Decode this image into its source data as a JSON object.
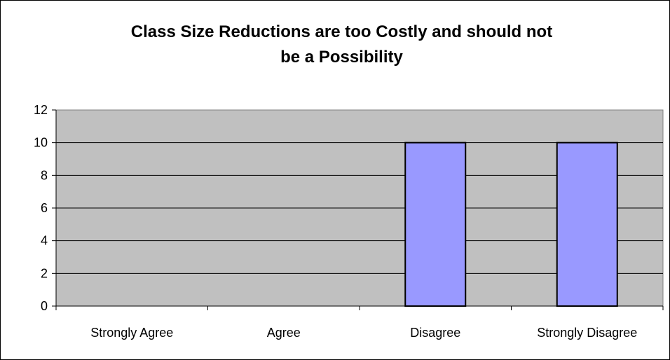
{
  "chart_data": {
    "type": "bar",
    "title": "Class Size Reductions are too Costly and should not\nbe a Possibility",
    "xlabel": "",
    "ylabel": "",
    "categories": [
      "Strongly Agree",
      "Agree",
      "Disagree",
      "Strongly Disagree"
    ],
    "values": [
      0,
      0,
      10,
      10
    ],
    "ylim": [
      0,
      12
    ],
    "yticks": [
      0,
      2,
      4,
      6,
      8,
      10,
      12
    ],
    "grid": true,
    "legend": "none",
    "colors": {
      "plot_background": "#c0c0c0",
      "bar_fill": "#9999ff",
      "bar_stroke": "#000000",
      "gridline": "#000000",
      "axis": "#808080"
    }
  }
}
